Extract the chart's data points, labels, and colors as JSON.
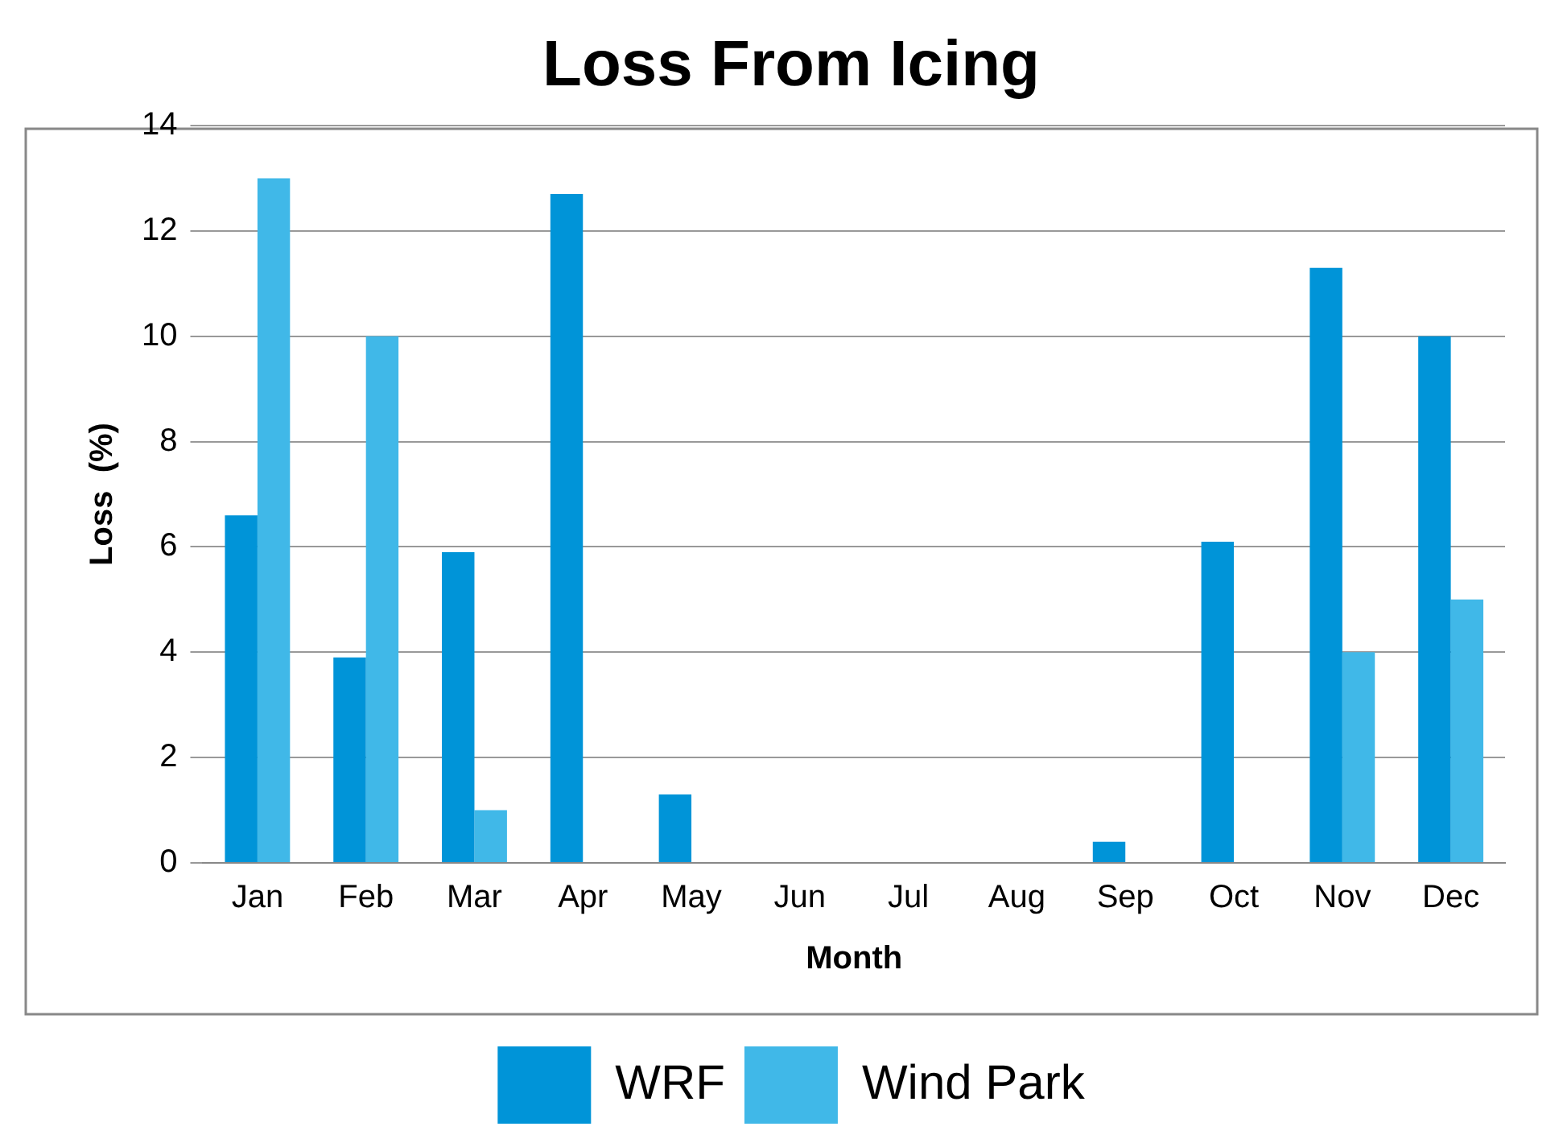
{
  "chart_data": {
    "type": "bar",
    "title": "Loss From Icing",
    "xlabel": "Month",
    "ylabel": "Loss  (%)",
    "categories": [
      "Jan",
      "Feb",
      "Mar",
      "Apr",
      "May",
      "Jun",
      "Jul",
      "Aug",
      "Sep",
      "Oct",
      "Nov",
      "Dec"
    ],
    "series": [
      {
        "name": "WRF",
        "color": "#0094d8",
        "values": [
          6.6,
          3.9,
          5.9,
          12.7,
          1.3,
          0,
          0,
          0,
          0.4,
          6.1,
          11.3,
          10.0
        ]
      },
      {
        "name": "Wind Park",
        "color": "#40b8e8",
        "values": [
          13.0,
          10.0,
          1.0,
          0,
          0,
          0,
          0,
          0,
          0,
          0,
          4.0,
          5.0
        ]
      }
    ],
    "ylim": [
      0,
      14
    ],
    "yticks": [
      0,
      2,
      4,
      6,
      8,
      10,
      12,
      14
    ],
    "grid": "y",
    "legend": "bottom"
  }
}
